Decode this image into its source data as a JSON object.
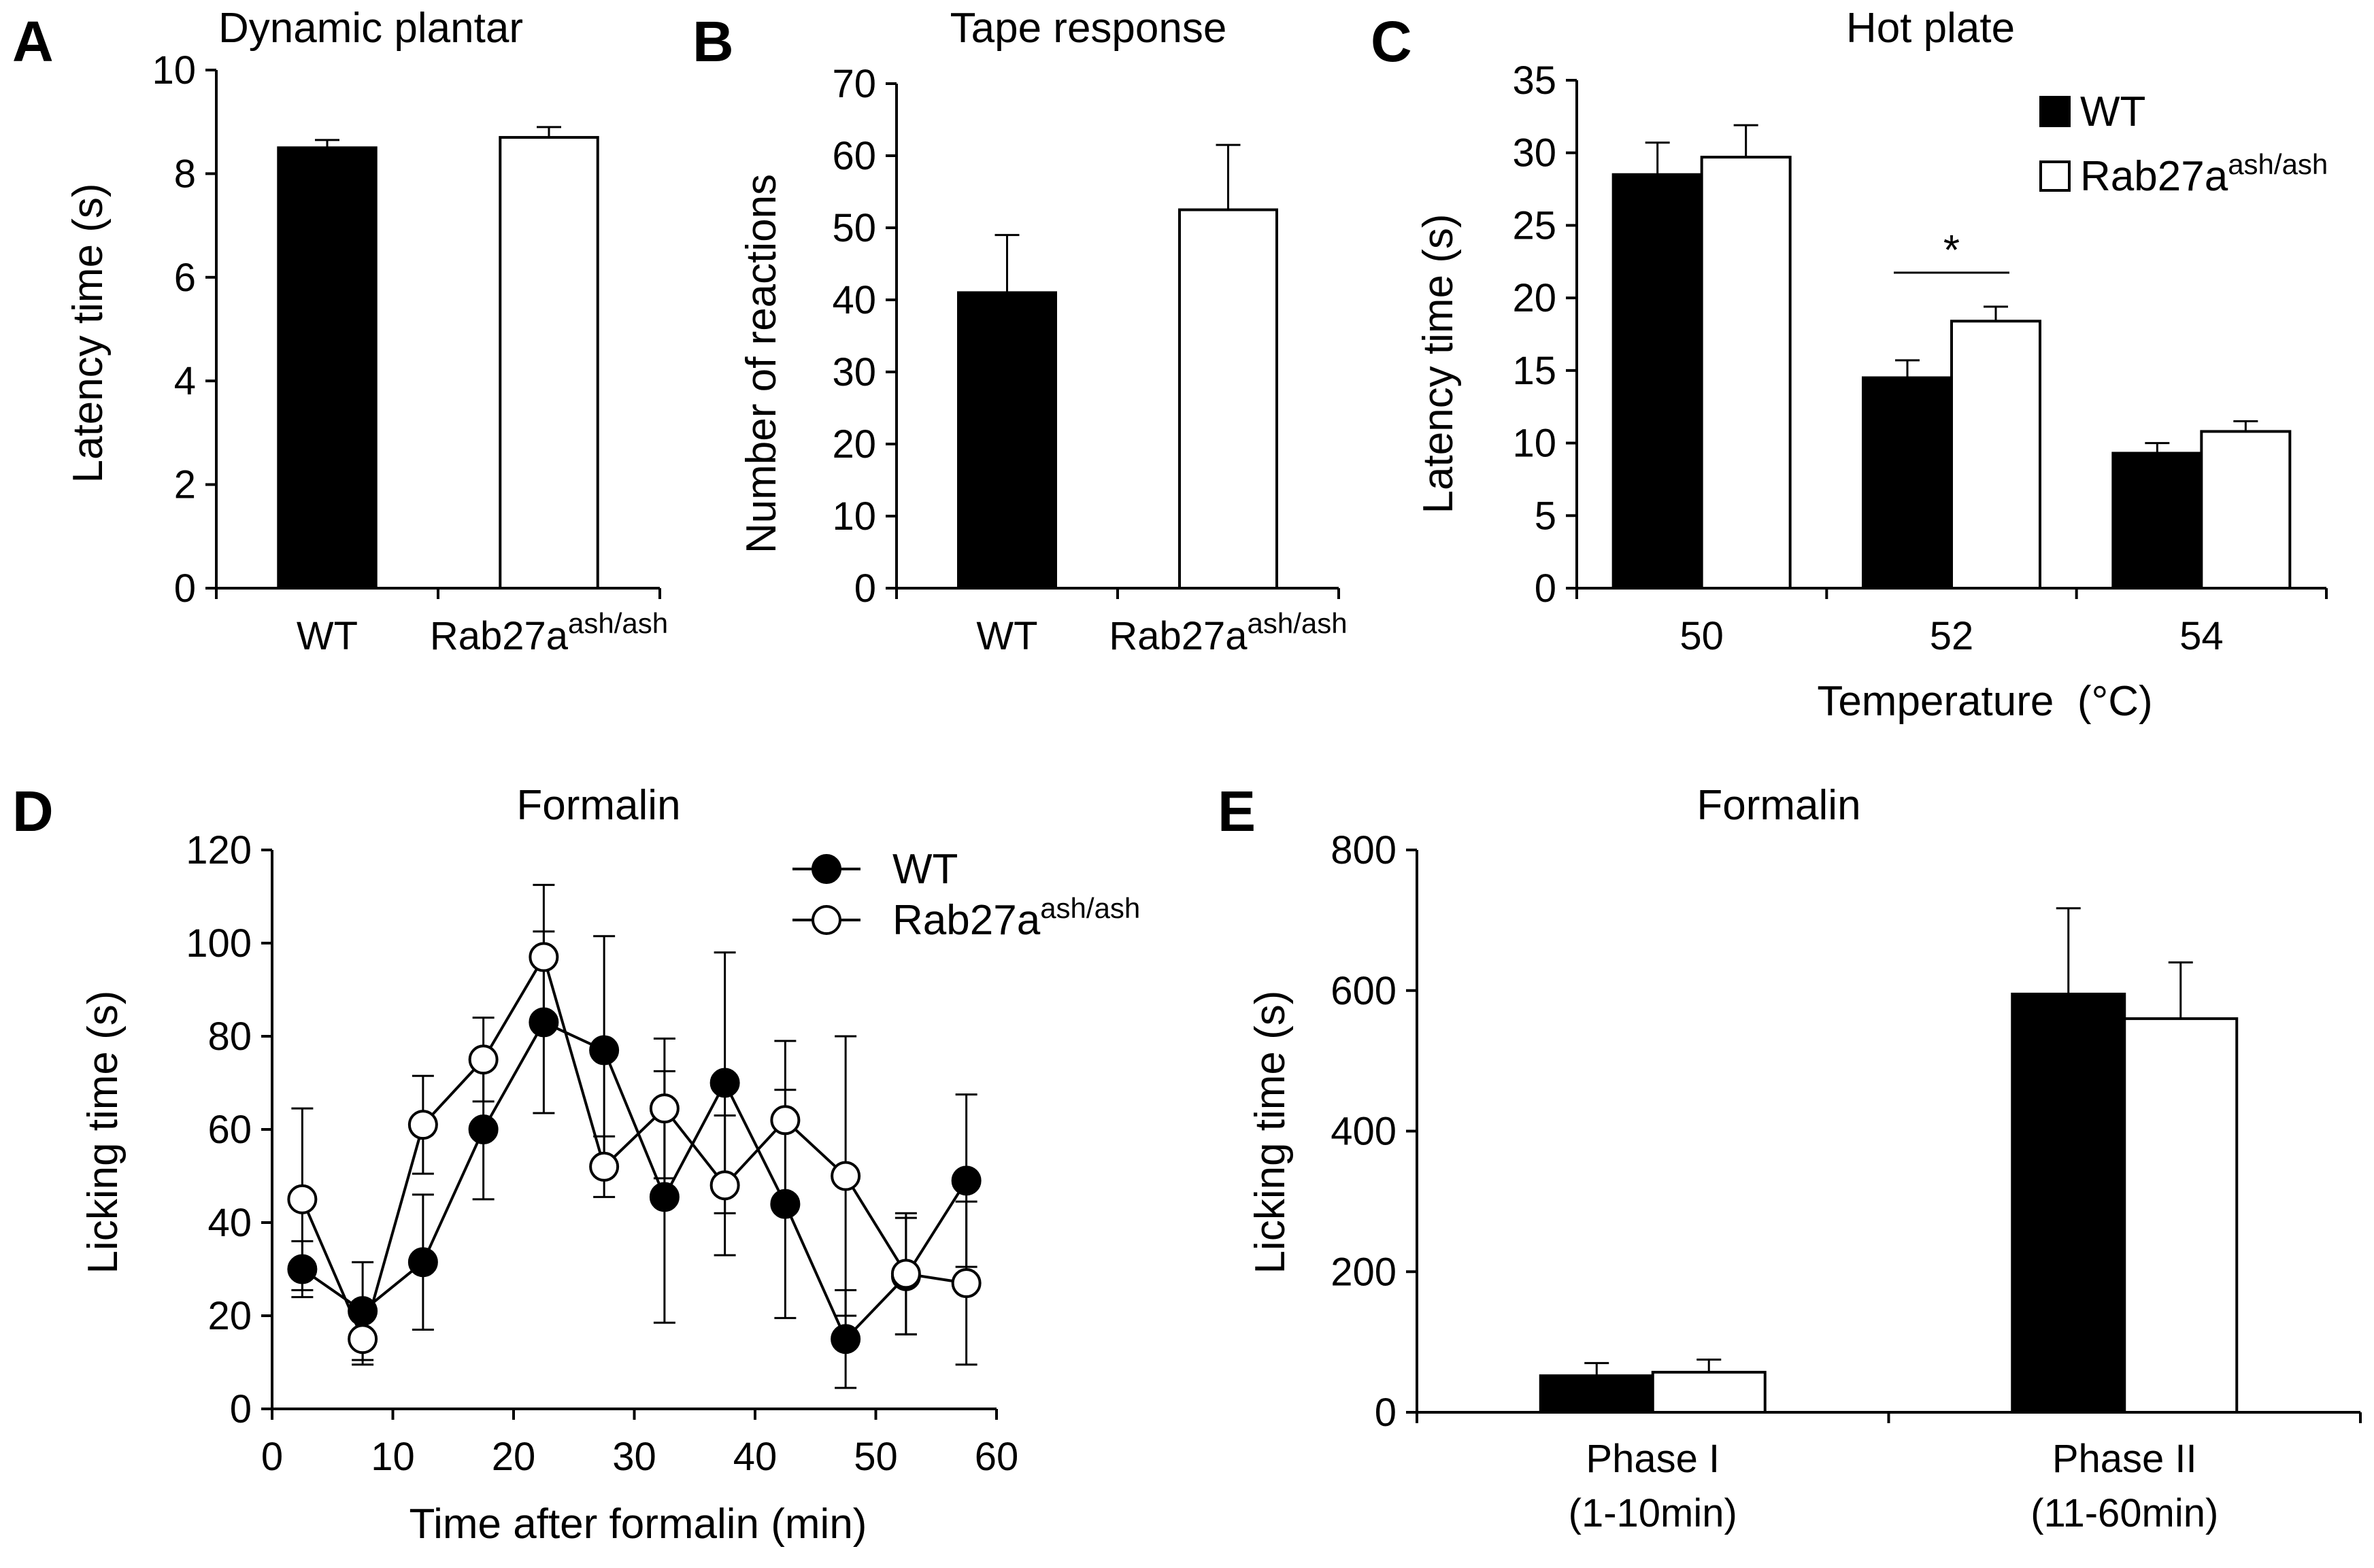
{
  "chart_data": [
    {
      "id": "A",
      "panel_label": "A",
      "type": "bar",
      "title": "Dynamic plantar",
      "ylabel": "Latency time (s)",
      "xlabel": "",
      "ylim": [
        0,
        10
      ],
      "yticks": [
        "0",
        "2",
        "4",
        "6",
        "8",
        "10"
      ],
      "categories": [
        {
          "base": "WT",
          "sup": ""
        },
        {
          "base": "Rab27a",
          "sup": "ash/ash"
        }
      ],
      "values": [
        8.5,
        8.7
      ],
      "errors": [
        0.15,
        0.2
      ],
      "fills": [
        "#000000",
        "#ffffff"
      ]
    },
    {
      "id": "B",
      "panel_label": "B",
      "type": "bar",
      "title": "Tape response",
      "ylabel": "Number of reactions",
      "xlabel": "",
      "ylim": [
        0,
        70
      ],
      "yticks": [
        "0",
        "10",
        "20",
        "30",
        "40",
        "50",
        "60",
        "70"
      ],
      "categories": [
        {
          "base": "WT",
          "sup": ""
        },
        {
          "base": "Rab27a",
          "sup": "ash/ash"
        }
      ],
      "values": [
        41,
        52.5
      ],
      "errors": [
        8,
        9
      ],
      "fills": [
        "#000000",
        "#ffffff"
      ]
    },
    {
      "id": "C",
      "panel_label": "C",
      "type": "bar",
      "title": "Hot plate",
      "ylabel": "Latency time (s)",
      "xlabel": "Temperature  (°C)",
      "ylim": [
        0,
        35
      ],
      "yticks": [
        "0",
        "5",
        "10",
        "15",
        "20",
        "25",
        "30",
        "35"
      ],
      "categories": [
        "50",
        "52",
        "54"
      ],
      "series": [
        {
          "name": "WT",
          "sup": "",
          "fill": "#000000",
          "values": [
            28.5,
            14.5,
            9.3
          ],
          "errors": [
            2.2,
            1.2,
            0.7
          ]
        },
        {
          "name": "Rab27a",
          "sup": "ash/ash",
          "fill": "#ffffff",
          "values": [
            29.7,
            18.4,
            10.8
          ],
          "errors": [
            2.2,
            1.0,
            0.7
          ]
        }
      ],
      "significance": {
        "category_index": 1,
        "mark": "*"
      },
      "legend": "top-right"
    },
    {
      "id": "D",
      "panel_label": "D",
      "type": "line",
      "title": "Formalin",
      "ylabel": "Licking time (s)",
      "xlabel": "Time after formalin (min)",
      "xlim": [
        0,
        60
      ],
      "ylim": [
        0,
        120
      ],
      "xticks": [
        "0",
        "10",
        "20",
        "30",
        "40",
        "50",
        "60"
      ],
      "yticks": [
        "0",
        "20",
        "40",
        "60",
        "80",
        "100",
        "120"
      ],
      "x": [
        2.5,
        7.5,
        12.5,
        17.5,
        22.5,
        27.5,
        32.5,
        37.5,
        42.5,
        47.5,
        52.5,
        57.5
      ],
      "series": [
        {
          "name": "WT",
          "sup": "",
          "marker": "filled",
          "values": [
            30,
            21,
            31.5,
            60,
            83,
            77,
            45.5,
            70,
            44,
            15,
            28.5,
            49
          ],
          "errors": [
            6,
            10.5,
            14.5,
            15,
            19.5,
            24.5,
            27,
            28,
            24.5,
            10.5,
            12.5,
            18.5
          ]
        },
        {
          "name": "Rab27a",
          "sup": "ash/ash",
          "marker": "open",
          "values": [
            45,
            15,
            61,
            75,
            97,
            52,
            64.5,
            48,
            62,
            50,
            29,
            27
          ],
          "errors": [
            19.5,
            5.5,
            10.5,
            9,
            15.5,
            6.5,
            15,
            15,
            17,
            30,
            13,
            17.5
          ]
        }
      ],
      "legend": "top-center"
    },
    {
      "id": "E",
      "panel_label": "E",
      "type": "bar",
      "title": "Formalin",
      "ylabel": "Licking time (s)",
      "xlabel": "",
      "ylim": [
        0,
        800
      ],
      "yticks": [
        "0",
        "200",
        "400",
        "600",
        "800"
      ],
      "categories": [
        {
          "line1": "Phase I",
          "line2": "(1-10min)"
        },
        {
          "line1": "Phase II",
          "line2": "(11-60min)"
        }
      ],
      "series": [
        {
          "name": "WT",
          "fill": "#000000",
          "values": [
            52,
            595
          ],
          "errors": [
            18,
            122
          ]
        },
        {
          "name": "Rab27a",
          "fill": "#ffffff",
          "values": [
            57,
            560
          ],
          "errors": [
            18,
            80
          ]
        }
      ]
    }
  ]
}
